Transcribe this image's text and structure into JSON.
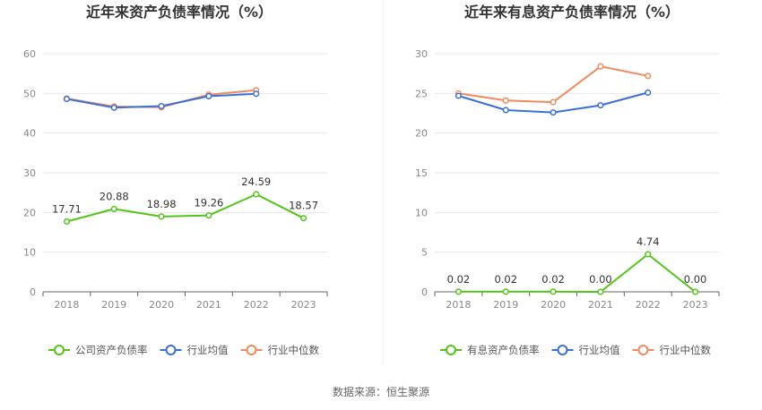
{
  "footer": {
    "source": "数据来源：恒生聚源"
  },
  "chart_data": [
    {
      "type": "line",
      "title": "近年来资产负债率情况（%）",
      "categories": [
        "2018",
        "2019",
        "2020",
        "2021",
        "2022",
        "2023"
      ],
      "ylim": [
        0,
        60
      ],
      "yticks": [
        0,
        10,
        20,
        30,
        40,
        50,
        60
      ],
      "grid": true,
      "legend_position": "bottom",
      "series": [
        {
          "name": "公司资产负债率",
          "color": "#52c41a",
          "values": [
            17.71,
            20.88,
            18.98,
            19.26,
            24.59,
            18.57
          ],
          "labels": [
            "17.71",
            "20.88",
            "18.98",
            "19.26",
            "24.59",
            "18.57"
          ]
        },
        {
          "name": "行业均值",
          "color": "#3b6fd8",
          "values": [
            48.6,
            46.4,
            46.8,
            49.3,
            49.9,
            null
          ],
          "labels": null
        },
        {
          "name": "行业中位数",
          "color": "#f08a5d",
          "values": [
            48.7,
            46.7,
            46.5,
            49.7,
            50.8,
            null
          ],
          "labels": null
        }
      ]
    },
    {
      "type": "line",
      "title": "近年来有息资产负债率情况（%）",
      "categories": [
        "2018",
        "2019",
        "2020",
        "2021",
        "2022",
        "2023"
      ],
      "ylim": [
        0,
        30
      ],
      "yticks": [
        0,
        5,
        10,
        15,
        20,
        25,
        30
      ],
      "grid": true,
      "legend_position": "bottom",
      "series": [
        {
          "name": "有息资产负债率",
          "color": "#52c41a",
          "values": [
            0.02,
            0.02,
            0.02,
            0.0,
            4.74,
            0.0
          ],
          "labels": [
            "0.02",
            "0.02",
            "0.02",
            "0.00",
            "4.74",
            "0.00"
          ]
        },
        {
          "name": "行业均值",
          "color": "#3b6fd8",
          "values": [
            24.7,
            22.9,
            22.6,
            23.5,
            25.1,
            null
          ],
          "labels": null
        },
        {
          "name": "行业中位数",
          "color": "#f08a5d",
          "values": [
            25.0,
            24.1,
            23.9,
            28.4,
            27.2,
            null
          ],
          "labels": null
        }
      ]
    }
  ]
}
